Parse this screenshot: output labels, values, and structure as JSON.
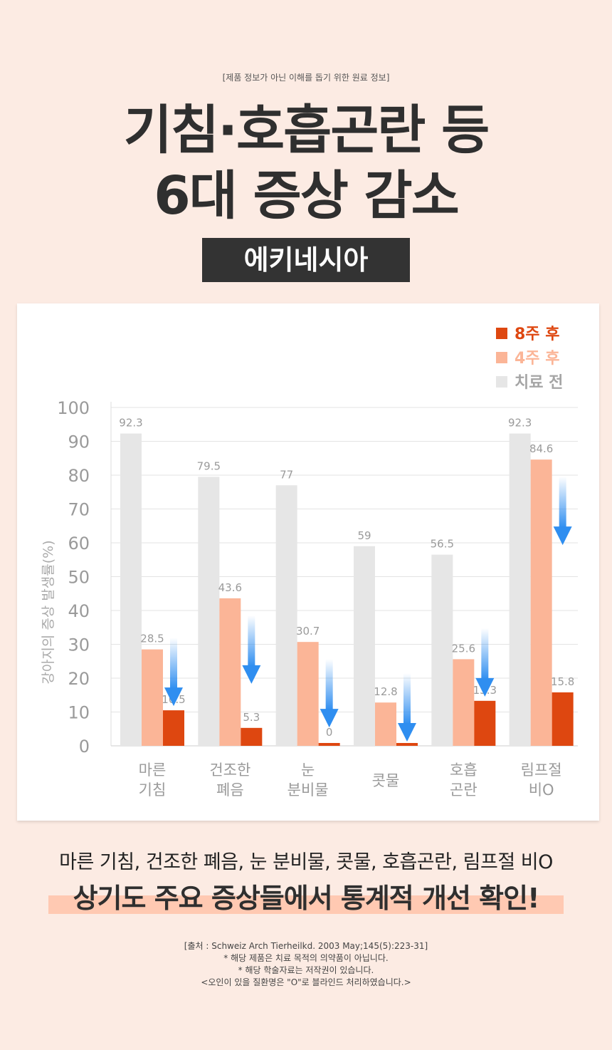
{
  "header": {
    "disclaimer": "[제품 정보가 아닌 이해를 돕기 위한 원료 정보]",
    "title_line1": "기침·호흡곤란 등",
    "title_line2": "6대 증상 감소",
    "product_name": "에키네시아"
  },
  "chart_data": {
    "type": "bar",
    "ylabel": "강아지의 증상 발생률(%)",
    "ylim": [
      0,
      100
    ],
    "yticks": [
      0,
      10,
      20,
      30,
      40,
      50,
      60,
      70,
      80,
      90,
      100
    ],
    "grid": true,
    "legend_position": "top-right",
    "categories": [
      [
        "마른",
        "기침"
      ],
      [
        "건조한",
        "폐음"
      ],
      [
        "눈",
        "분비물"
      ],
      [
        "콧물"
      ],
      [
        "호흡",
        "곤란"
      ],
      [
        "림프절",
        "비O"
      ]
    ],
    "series": [
      {
        "name": "치료 전",
        "color": "#e6e6e6",
        "values": [
          92.3,
          79.5,
          77,
          59,
          56.5,
          92.3
        ]
      },
      {
        "name": "4주 후",
        "color": "#fbb597",
        "values": [
          28.5,
          43.6,
          30.7,
          12.8,
          25.6,
          84.6
        ]
      },
      {
        "name": "8주 후",
        "color": "#de4710",
        "values": [
          10.5,
          5.3,
          0,
          0,
          13.3,
          15.8
        ]
      }
    ],
    "legend_order": [
      "8주 후",
      "4주 후",
      "치료 전"
    ]
  },
  "summary": {
    "line1": "마른 기침, 건조한 폐음, 눈 분비물, 콧물, 호흡곤란, 림프절 비O",
    "line2": "상기도 주요 증상들에서 통계적 개선 확인!"
  },
  "footnotes": {
    "source": "[출처 : Schweiz Arch Tierheilkd. 2003 May;145(5):223-31]",
    "note1": "* 해당 제품은 치료 목적의 의약품이 아닙니다.",
    "note2": "* 해당 학술자료는 저작권이 있습니다.",
    "note3": "<오인이 있을 질환명은 \"O\"로 블라인드 처리하였습니다.>"
  },
  "colors": {
    "background": "#fcebe3",
    "arrow": "#2f8ef0",
    "emphasis_highlight": "#ffc9b2"
  }
}
